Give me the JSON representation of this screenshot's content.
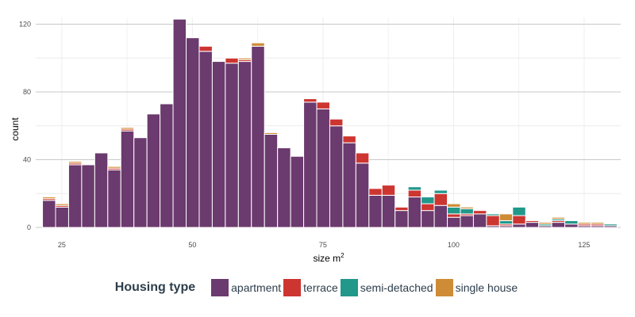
{
  "chart_data": {
    "type": "bar",
    "stacked": true,
    "xlabel": "size m",
    "xlabel_superscript": "2",
    "ylabel": "count",
    "xlim": [
      20,
      132
    ],
    "ylim": [
      0,
      124
    ],
    "x_ticks": [
      25,
      50,
      75,
      100,
      125
    ],
    "y_ticks": [
      0,
      40,
      80,
      120
    ],
    "bin_width": 2.5,
    "bin_starts": [
      21.3,
      23.8,
      26.3,
      28.8,
      31.3,
      33.8,
      36.3,
      38.8,
      41.3,
      43.8,
      46.3,
      48.8,
      51.3,
      53.8,
      56.3,
      58.8,
      61.3,
      63.8,
      66.3,
      68.8,
      71.3,
      73.8,
      76.3,
      78.8,
      81.3,
      83.8,
      86.3,
      88.8,
      91.3,
      93.8,
      96.3,
      98.8,
      101.3,
      103.8,
      106.3,
      108.8,
      111.3,
      113.8,
      116.3,
      118.8,
      121.3,
      123.8,
      126.3,
      128.8
    ],
    "series": [
      {
        "name": "apartment",
        "color": "#6b3a6e",
        "values": [
          16,
          12,
          37,
          37,
          44,
          34,
          57,
          53,
          67,
          73,
          123,
          112,
          104,
          98,
          97,
          98,
          107,
          55,
          47,
          42,
          74,
          70,
          60,
          50,
          38,
          19,
          19,
          10,
          18,
          10,
          13,
          6,
          7,
          8,
          1,
          1,
          2,
          3,
          1,
          3,
          2,
          1,
          1,
          1
        ]
      },
      {
        "name": "terrace",
        "color": "#cd3531",
        "values": [
          1,
          1,
          1,
          0,
          0,
          1,
          1,
          0,
          0,
          0,
          0,
          0,
          3,
          0,
          3,
          1,
          0,
          0,
          0,
          0,
          2,
          4,
          4,
          4,
          6,
          4,
          6,
          2,
          4,
          4,
          7,
          2,
          1,
          2,
          6,
          1,
          5,
          1,
          0,
          1,
          0,
          1,
          1,
          0
        ]
      },
      {
        "name": "semi-detached",
        "color": "#22988a",
        "values": [
          0,
          0,
          0,
          0,
          0,
          0,
          0,
          0,
          0,
          0,
          0,
          0,
          0,
          0,
          0,
          0,
          0,
          0,
          0,
          0,
          0,
          0,
          0,
          0,
          0,
          0,
          0,
          0,
          2,
          4,
          2,
          4,
          3,
          0,
          1,
          2,
          5,
          0,
          1,
          1,
          2,
          0,
          0,
          1
        ]
      },
      {
        "name": "single house",
        "color": "#cf8c36",
        "values": [
          1,
          1,
          1,
          0,
          0,
          1,
          1,
          0,
          0,
          0,
          0,
          0,
          0,
          0,
          0,
          1,
          2,
          1,
          0,
          0,
          0,
          0,
          0,
          0,
          0,
          0,
          0,
          0,
          0,
          0,
          0,
          2,
          1,
          0,
          0,
          4,
          0,
          0,
          1,
          1,
          0,
          1,
          1,
          0
        ]
      }
    ],
    "legend": {
      "title": "Housing type",
      "placement": "bottom"
    },
    "grid": true
  }
}
